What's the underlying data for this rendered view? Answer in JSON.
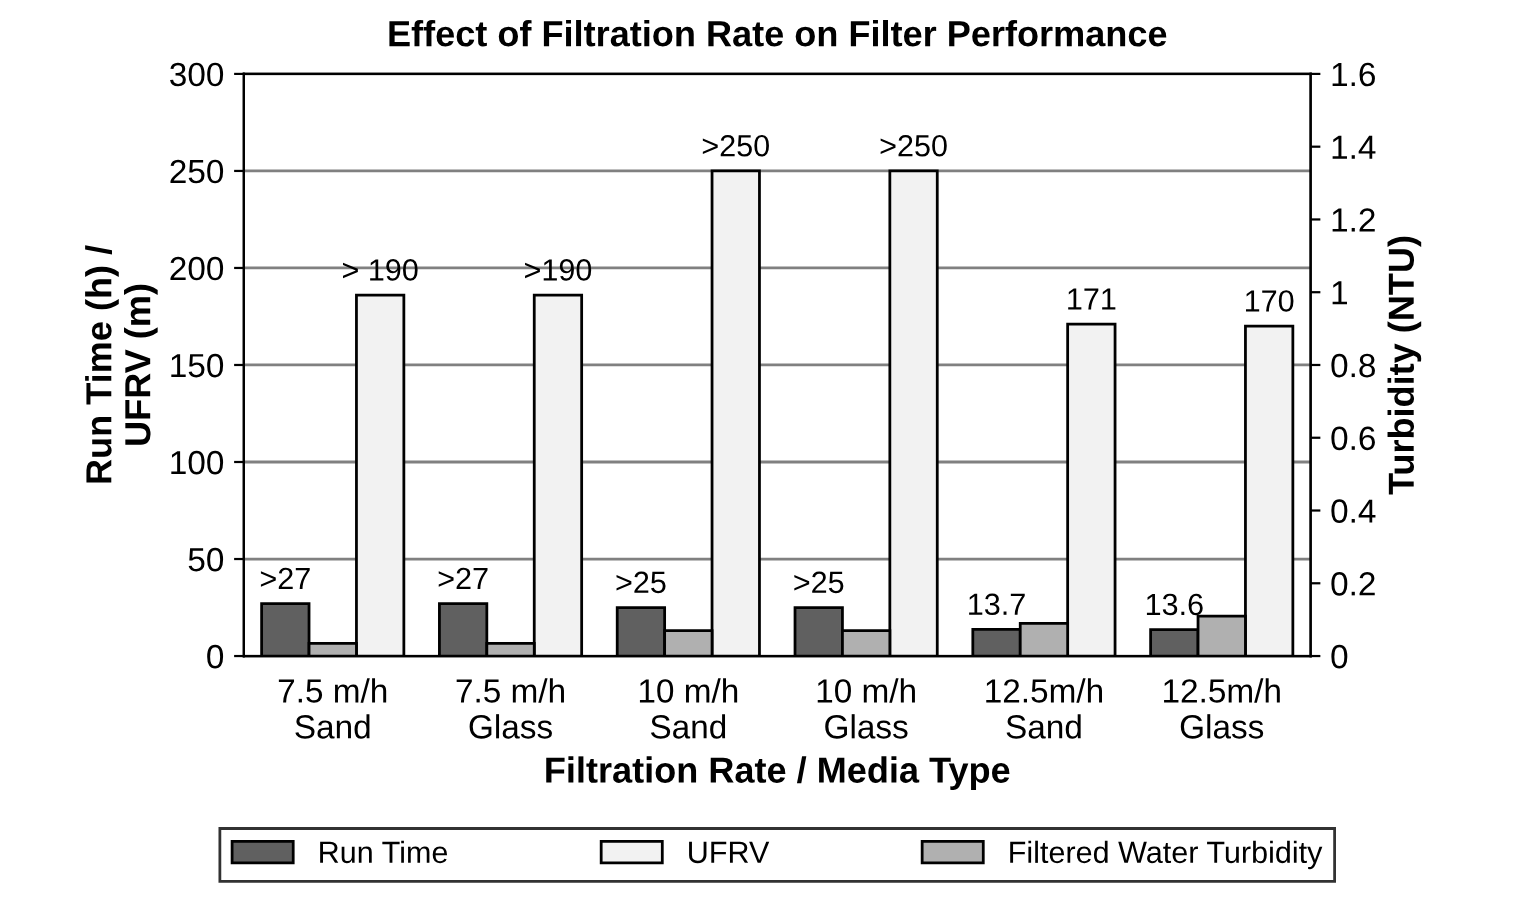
{
  "chart_data": {
    "type": "bar",
    "title": "Effect of Filtration Rate on Filter Performance",
    "xlabel": "Filtration Rate / Media Type",
    "ylabel": "Run Time (h) /\nUFRV (m)",
    "y2label": "Turbidity (NTU)",
    "categories": [
      "7.5 m/h\nSand",
      "7.5 m/h\nGlass",
      "10 m/h\nSand",
      "10 m/h\nGlass",
      "12.5m/h\nSand",
      "12.5m/h\nGlass"
    ],
    "series": [
      {
        "name": "Run Time",
        "color": "#606060",
        "values": [
          27,
          27,
          25,
          25,
          13.7,
          13.6
        ],
        "value_labels": [
          ">27",
          ">27",
          ">25",
          ">25",
          "13.7",
          "13.6"
        ]
      },
      {
        "name": "UFRV",
        "color": "#f2f2f2",
        "values": [
          186,
          186,
          250,
          250,
          171,
          170
        ],
        "value_labels": [
          "> 190",
          ">190",
          ">250",
          ">250",
          "171",
          "170"
        ]
      },
      {
        "name": "Filtered Water Turbidity",
        "color": "#b0b0b0",
        "axis": "y2",
        "values": [
          0.035,
          0.035,
          0.07,
          0.07,
          0.09,
          0.11
        ]
      }
    ],
    "ylim": [
      0,
      300
    ],
    "yticks": [
      0,
      50,
      100,
      150,
      200,
      250,
      300
    ],
    "y2lim": [
      0,
      1.6
    ],
    "y2ticks": [
      0,
      0.2,
      0.4,
      0.6,
      0.8,
      1,
      1.2,
      1.4,
      1.6
    ],
    "grid": "y",
    "legend": "bottom"
  }
}
